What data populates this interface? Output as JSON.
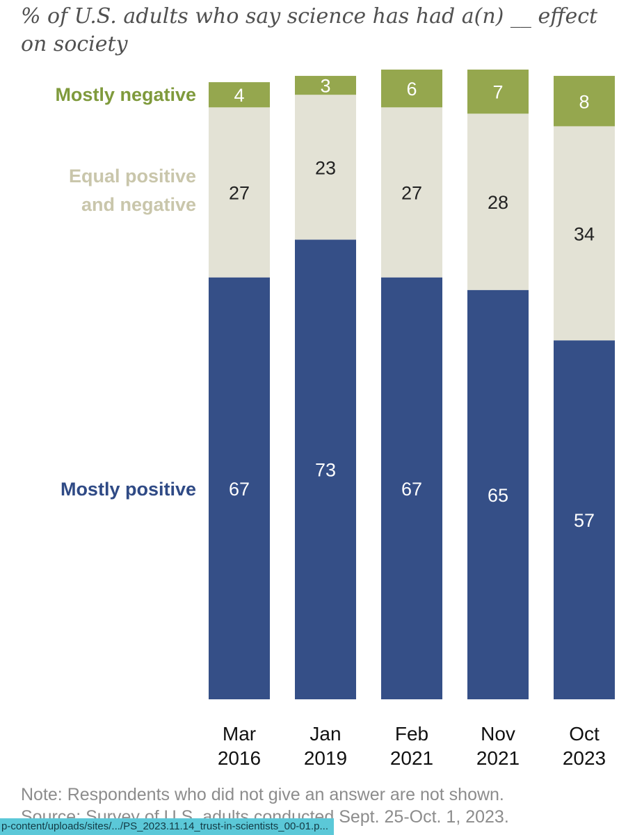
{
  "chart_data": {
    "type": "stacked-bar",
    "subtitle": "% of U.S. adults who say science has had a(n) __ effect on society",
    "categories": [
      {
        "line1": "Mar",
        "line2": "2016"
      },
      {
        "line1": "Jan",
        "line2": "2019"
      },
      {
        "line1": "Feb",
        "line2": "2021"
      },
      {
        "line1": "Nov",
        "line2": "2021"
      },
      {
        "line1": "Oct",
        "line2": "2023"
      }
    ],
    "series": [
      {
        "key": "positive",
        "name_lines": [
          "Mostly positive"
        ],
        "color": "#354f87",
        "label_color": "#ffffff",
        "values": [
          67,
          73,
          67,
          65,
          57
        ]
      },
      {
        "key": "equal",
        "name_lines": [
          "Equal positive",
          "and negative"
        ],
        "color": "#e3e2d5",
        "label_color": "#222222",
        "values": [
          27,
          23,
          27,
          28,
          34
        ]
      },
      {
        "key": "negative",
        "name_lines": [
          "Mostly negative"
        ],
        "color": "#95a74e",
        "label_color": "#ffffff",
        "values": [
          4,
          3,
          6,
          7,
          8
        ]
      }
    ],
    "legend_colors": {
      "positive": "#2f4a85",
      "equal": "#c9c6ab",
      "negative": "#7f9a3c"
    },
    "ylim": [
      0,
      100
    ]
  },
  "note": "Note: Respondents who did not give an answer are not shown.",
  "source": "Source: Survey of U.S. adults conducted Sept. 25-Oct. 1, 2023.",
  "status_bar": {
    "url": "p-content/uploads/sites/.../PS_2023.11.14_trust-in-scientists_00-01.p..."
  }
}
